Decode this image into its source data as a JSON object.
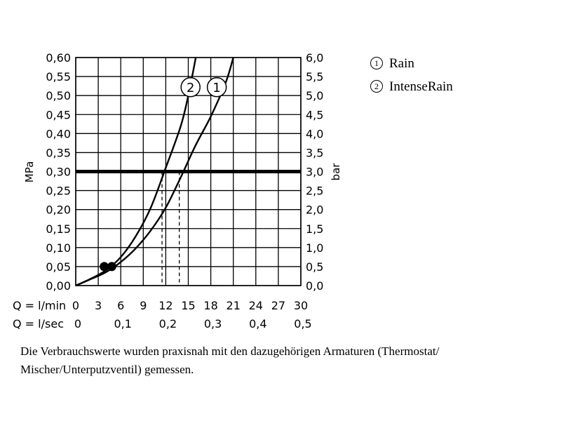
{
  "chart_data": {
    "type": "line",
    "ylabel_left": "MPa",
    "ylabel_right": "bar",
    "y_left_ticks": [
      "0,00",
      "0,05",
      "0,10",
      "0,15",
      "0,20",
      "0,25",
      "0,30",
      "0,35",
      "0,40",
      "0,45",
      "0,50",
      "0,55",
      "0,60"
    ],
    "y_right_ticks": [
      "0,0",
      "0,5",
      "1,0",
      "1,5",
      "2,0",
      "2,5",
      "3,0",
      "3,5",
      "4,0",
      "4,5",
      "5,0",
      "5,5",
      "6,0"
    ],
    "x_lmin_label": "Q = l/min",
    "x_lmin_ticks": [
      "0",
      "3",
      "6",
      "9",
      "12",
      "15",
      "18",
      "21",
      "24",
      "27",
      "30"
    ],
    "x_lsec_label": "Q = l/sec",
    "x_lsec_ticks": [
      "0",
      "0,1",
      "0,2",
      "0,3",
      "0,4",
      "0,5"
    ],
    "x_unit": "l/min",
    "y_unit": "MPa",
    "xlim": [
      0,
      30
    ],
    "ylim": [
      0,
      0.6
    ],
    "grid": true,
    "reference_line": {
      "y": 0.3,
      "label": ""
    },
    "series": [
      {
        "marker": "1",
        "name": "Rain",
        "points": [
          [
            0,
            0
          ],
          [
            2,
            0.017
          ],
          [
            4,
            0.035
          ],
          [
            6,
            0.062
          ],
          [
            8,
            0.098
          ],
          [
            10,
            0.145
          ],
          [
            12,
            0.205
          ],
          [
            14,
            0.285
          ],
          [
            16,
            0.37
          ],
          [
            18,
            0.445
          ],
          [
            20,
            0.535
          ],
          [
            21,
            0.6
          ]
        ],
        "operating_point": {
          "x": 13.8,
          "y": 0.3
        }
      },
      {
        "marker": "2",
        "name": "IntenseRain",
        "points": [
          [
            0,
            0
          ],
          [
            2,
            0.018
          ],
          [
            4,
            0.04
          ],
          [
            6,
            0.075
          ],
          [
            8,
            0.13
          ],
          [
            10,
            0.205
          ],
          [
            12,
            0.31
          ],
          [
            14,
            0.42
          ],
          [
            15,
            0.5
          ],
          [
            16,
            0.6
          ]
        ],
        "operating_point": {
          "x": 11.5,
          "y": 0.3
        }
      }
    ],
    "dots": [
      {
        "x": 3.8,
        "y": 0.05
      },
      {
        "x": 4.8,
        "y": 0.05
      }
    ]
  },
  "legend": [
    {
      "marker": "1",
      "label": "Rain"
    },
    {
      "marker": "2",
      "label": "IntenseRain"
    }
  ],
  "note": "Die Verbrauchswerte wurden praxisnah mit den dazugehörigen Armaturen (Thermostat/\nMischer/Unterputzventil) gemessen."
}
